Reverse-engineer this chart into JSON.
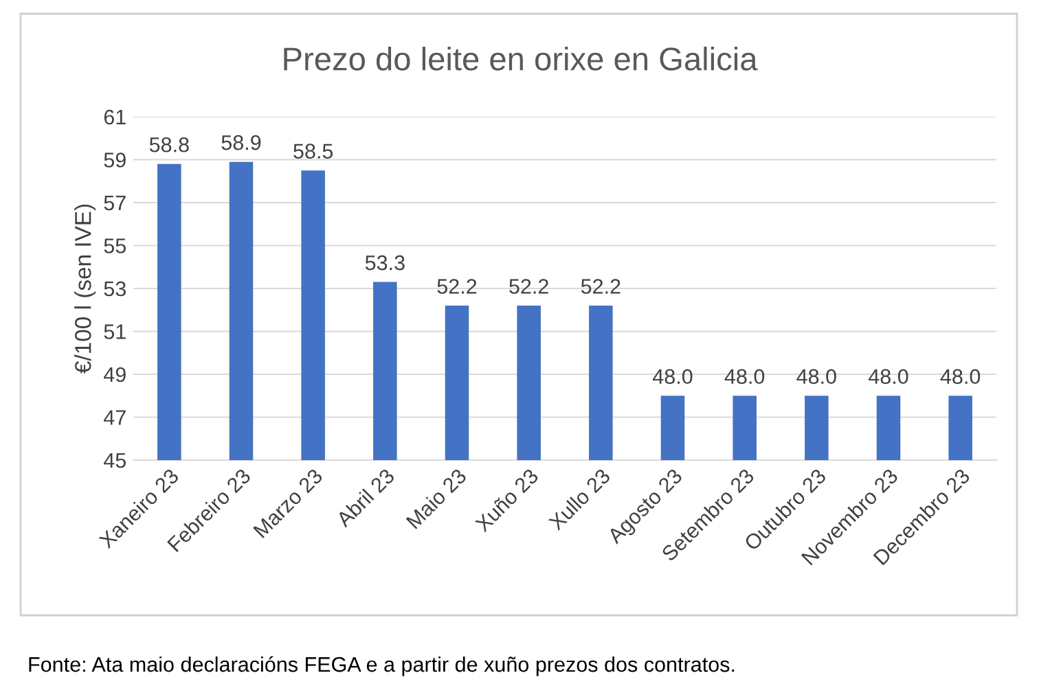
{
  "chart_data": {
    "type": "bar",
    "title": "Prezo do leite en orixe en Galicia",
    "ylabel": "€/100 l (sen IVE)",
    "categories": [
      "Xaneiro 23",
      "Febreiro 23",
      "Marzo 23",
      "Abril 23",
      "Maio 23",
      "Xuño 23",
      "Xullo 23",
      "Agosto 23",
      "Setembro 23",
      "Outubro 23",
      "Novembro 23",
      "Decembro 23"
    ],
    "values": [
      58.8,
      58.9,
      58.5,
      53.3,
      52.2,
      52.2,
      52.2,
      48.0,
      48.0,
      48.0,
      48.0,
      48.0
    ],
    "color": "#4472c4",
    "ylim": [
      45,
      61
    ],
    "yticks": [
      45,
      47,
      49,
      51,
      53,
      55,
      57,
      59,
      61
    ],
    "grid": "y",
    "value_labels": [
      "58.8",
      "58.9",
      "58.5",
      "53.3",
      "52.2",
      "52.2",
      "52.2",
      "48.0",
      "48.0",
      "48.0",
      "48.0",
      "48.0"
    ],
    "annotations": [
      "Fonte: Ata maio declaracións FEGA e a partir de xuño prezos dos contratos."
    ]
  }
}
